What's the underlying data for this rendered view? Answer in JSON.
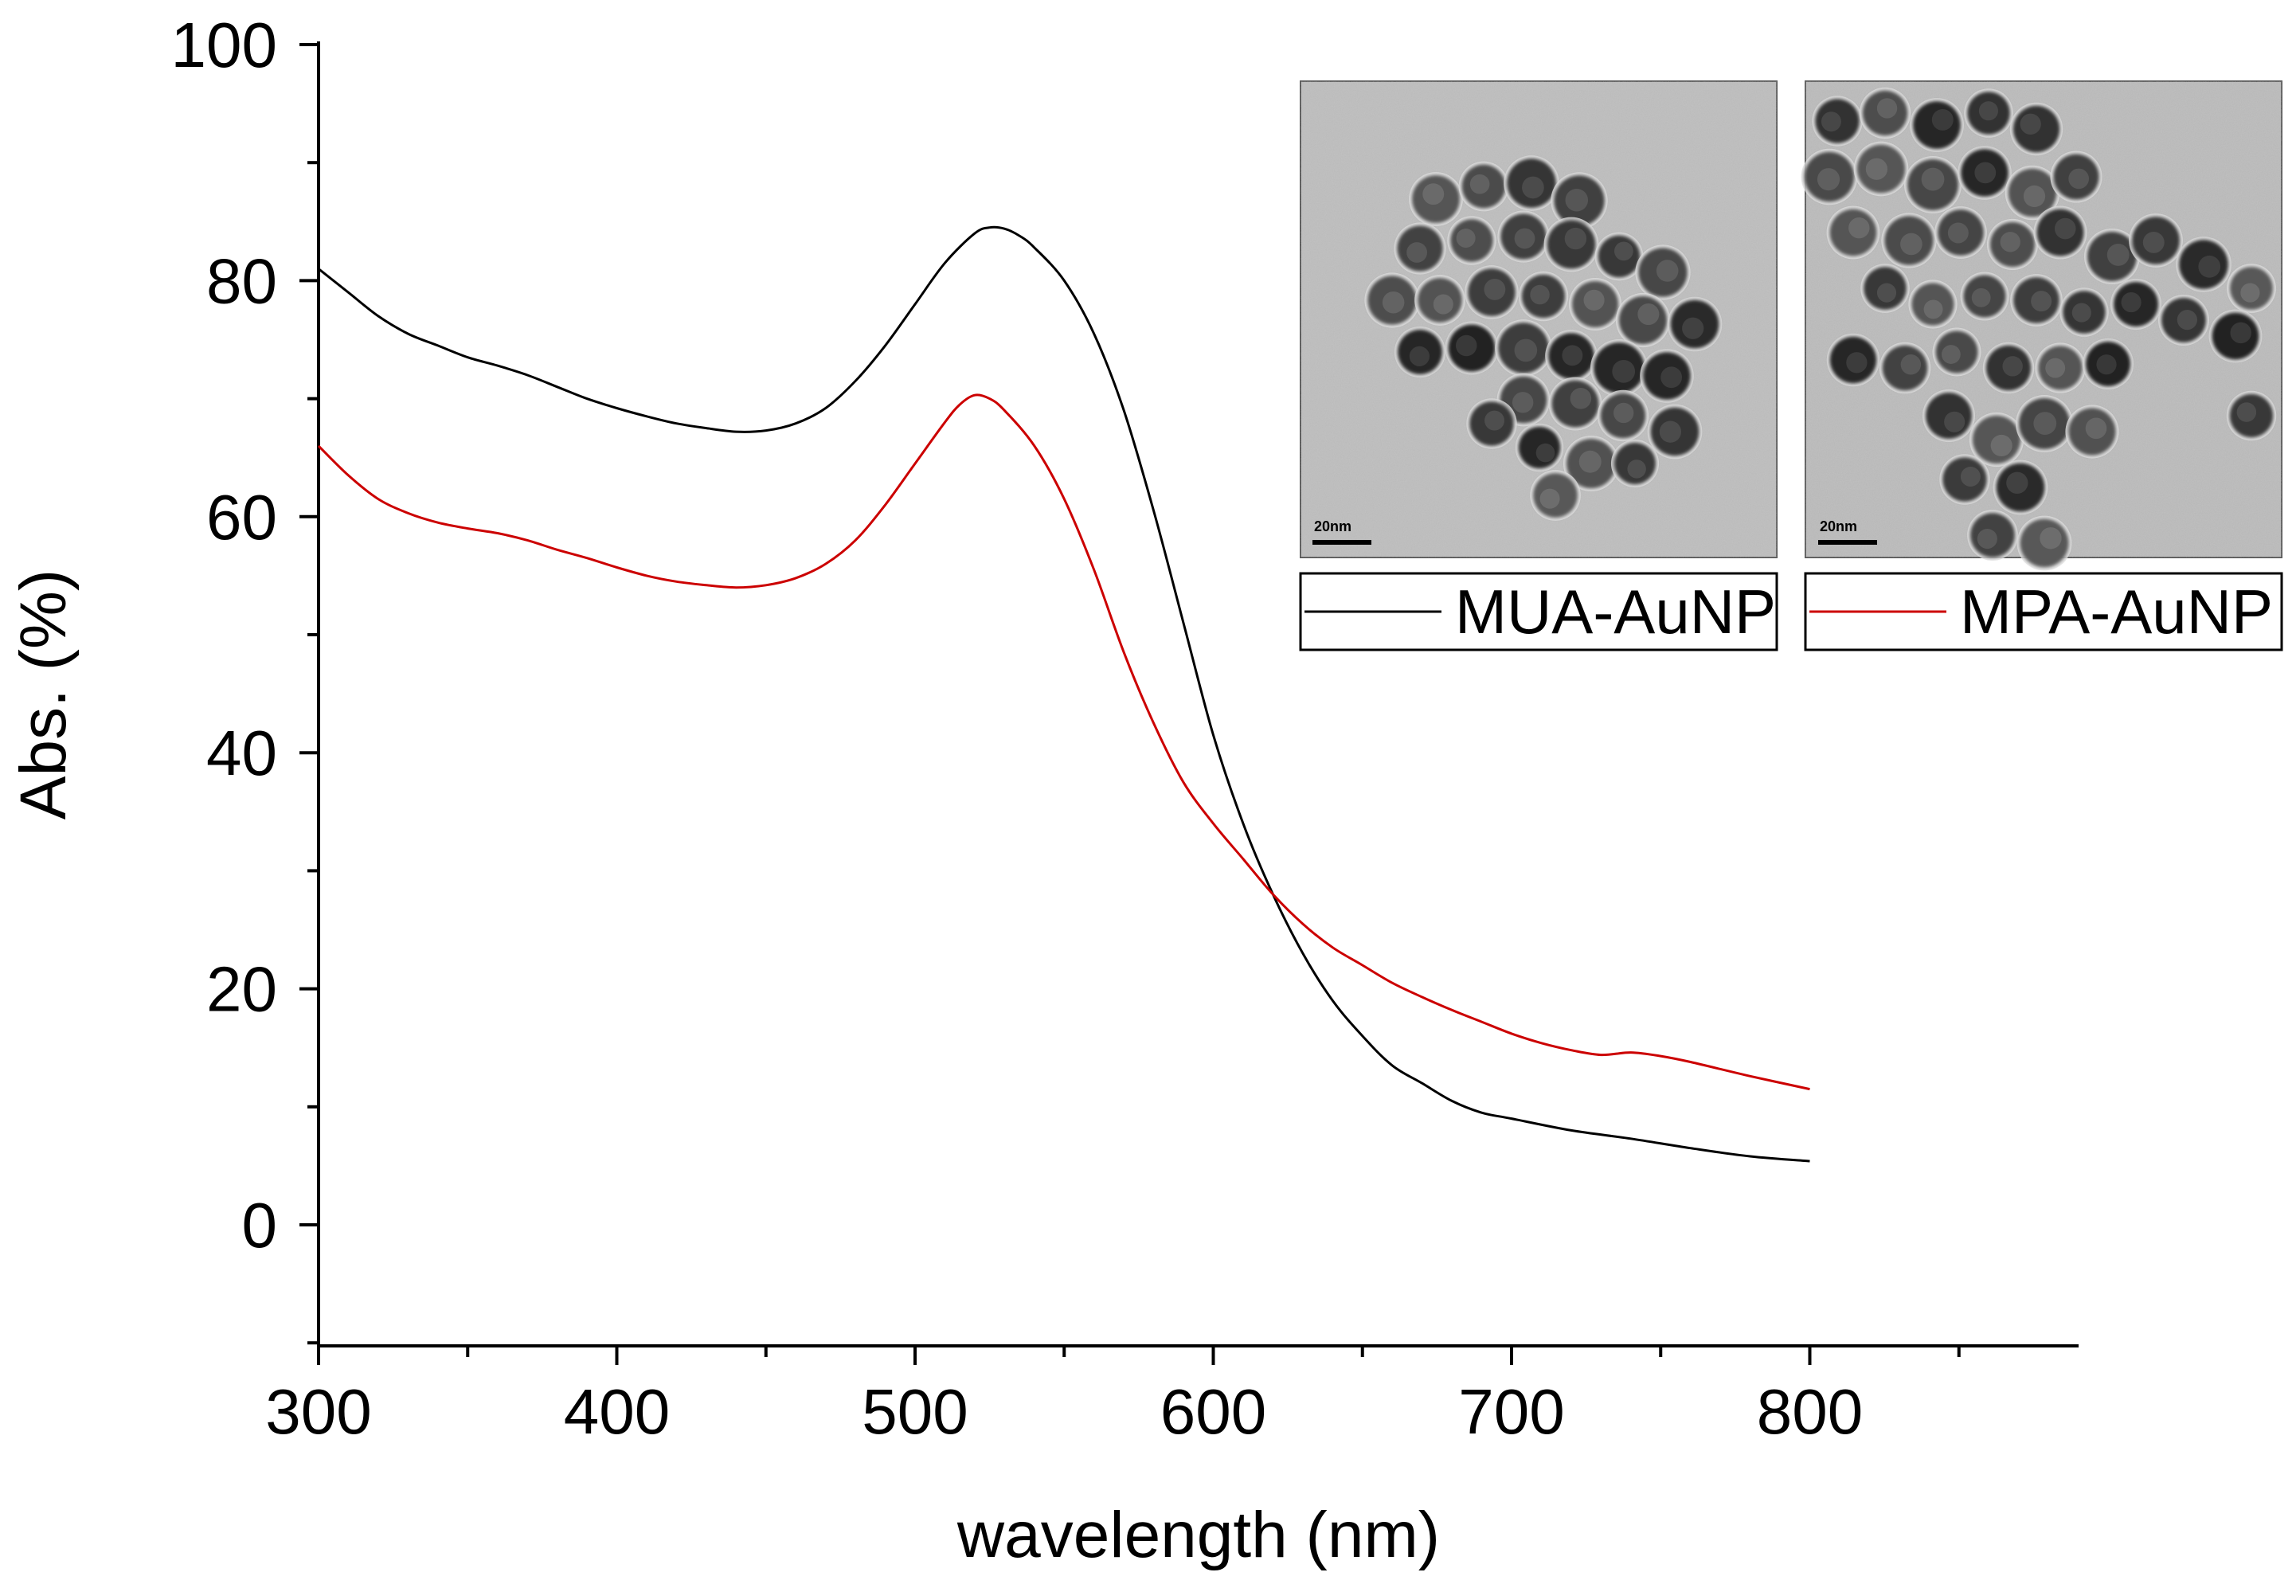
{
  "chart_data": {
    "type": "line",
    "title": "",
    "xlabel": "wavelength (nm)",
    "ylabel": "Abs. (%)",
    "xlim": [
      300,
      890
    ],
    "ylim": [
      -10,
      100
    ],
    "xticks": [
      300,
      400,
      500,
      600,
      700,
      800
    ],
    "yticks": [
      0,
      20,
      40,
      60,
      80,
      100
    ],
    "grid": false,
    "legend_position": "top-right",
    "series": [
      {
        "name": "MUA-AuNP",
        "color": "#000000",
        "x": [
          300,
          310,
          320,
          330,
          340,
          350,
          360,
          370,
          380,
          390,
          400,
          410,
          420,
          430,
          440,
          450,
          460,
          470,
          480,
          490,
          500,
          510,
          520,
          525,
          530,
          535,
          540,
          550,
          560,
          570,
          580,
          590,
          600,
          610,
          620,
          630,
          640,
          650,
          660,
          670,
          680,
          690,
          700,
          720,
          740,
          760,
          780,
          800
        ],
        "y": [
          81,
          79,
          77,
          75.5,
          74.5,
          73.5,
          72.8,
          72,
          71,
          70,
          69.2,
          68.5,
          67.9,
          67.5,
          67.2,
          67.3,
          67.9,
          69.2,
          71.5,
          74.5,
          78,
          81.5,
          84,
          84.5,
          84.4,
          83.8,
          82.8,
          80,
          75.5,
          69,
          60.5,
          51,
          41.5,
          34,
          28,
          23,
          19,
          16,
          13.5,
          12,
          10.5,
          9.5,
          9,
          8,
          7.3,
          6.5,
          5.8,
          5.4
        ]
      },
      {
        "name": "MPA-AuNP",
        "color": "#cc0000",
        "x": [
          300,
          310,
          320,
          330,
          340,
          350,
          360,
          370,
          380,
          390,
          400,
          410,
          420,
          430,
          440,
          450,
          460,
          470,
          480,
          490,
          500,
          510,
          515,
          520,
          525,
          530,
          540,
          550,
          560,
          570,
          580,
          590,
          600,
          610,
          620,
          630,
          640,
          650,
          660,
          670,
          680,
          690,
          700,
          710,
          720,
          730,
          740,
          750,
          760,
          780,
          800
        ],
        "y": [
          66,
          63.5,
          61.5,
          60.3,
          59.5,
          59,
          58.6,
          58,
          57.2,
          56.5,
          55.7,
          55,
          54.5,
          54.2,
          54,
          54.2,
          54.8,
          56,
          58,
          61,
          64.5,
          68,
          69.5,
          70.3,
          70,
          69,
          66,
          61.5,
          55.5,
          48.5,
          42.5,
          37.5,
          34,
          31,
          28,
          25.5,
          23.5,
          22,
          20.5,
          19.3,
          18.2,
          17.2,
          16.2,
          15.4,
          14.8,
          14.4,
          14.6,
          14.3,
          13.8,
          12.6,
          11.5
        ]
      }
    ],
    "insets": [
      {
        "caption": "MUA-AuNP",
        "scale_bar": "20nm"
      },
      {
        "caption": "MPA-AuNP",
        "scale_bar": "20nm"
      }
    ]
  }
}
